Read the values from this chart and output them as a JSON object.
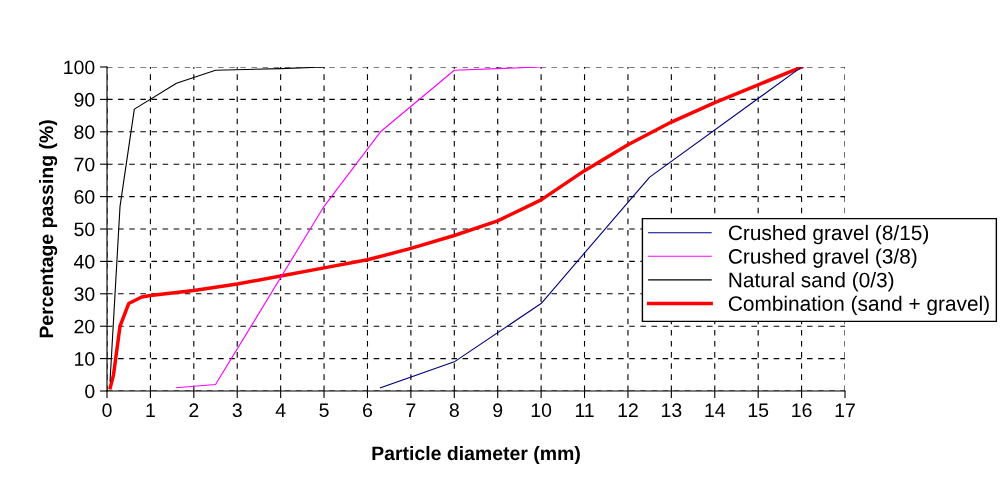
{
  "chart_data": {
    "type": "line",
    "xlabel": "Particle diameter (mm)",
    "ylabel": "Percentage passing (%)",
    "xlim": [
      0,
      17
    ],
    "xticks": [
      0,
      1,
      2,
      3,
      4,
      5,
      6,
      7,
      8,
      9,
      10,
      11,
      12,
      13,
      14,
      15,
      16,
      17
    ],
    "ylim": [
      0,
      100
    ],
    "yticks": [
      0,
      10,
      20,
      30,
      40,
      50,
      60,
      70,
      80,
      90,
      100
    ],
    "grid": true,
    "legend": "right",
    "marker": "none",
    "line_style": "solid",
    "series": [
      {
        "name": "Crushed gravel (8/15)",
        "color": "#000080",
        "x": [
          6.3,
          8,
          10,
          12.5,
          16
        ],
        "values": [
          1,
          9,
          27,
          66,
          100
        ]
      },
      {
        "name": "Crushed gravel (3/8)",
        "color": "#ff00ff",
        "x": [
          1.6,
          2.5,
          5,
          6.3,
          8,
          10
        ],
        "values": [
          1,
          2,
          57,
          80,
          99,
          100
        ]
      },
      {
        "name": "Natural sand (0/3)",
        "color": "#000000",
        "x": [
          0.07,
          0.3,
          0.63,
          1.6,
          2.5,
          4,
          5
        ],
        "values": [
          3,
          57,
          87,
          95,
          99,
          99.5,
          100
        ]
      },
      {
        "name": "Combination (sand + gravel)",
        "color": "#ff0000",
        "x": [
          0.075,
          0.15,
          0.3,
          0.5,
          0.8,
          1,
          2,
          3,
          4,
          5,
          6,
          7,
          8,
          9,
          10,
          11,
          12,
          13,
          14,
          15,
          16
        ],
        "values": [
          1,
          5,
          20,
          27,
          29,
          29.5,
          31,
          33,
          35.5,
          38,
          40.5,
          44,
          48,
          52.5,
          59,
          68,
          76,
          83,
          89,
          94.5,
          100
        ]
      }
    ]
  }
}
